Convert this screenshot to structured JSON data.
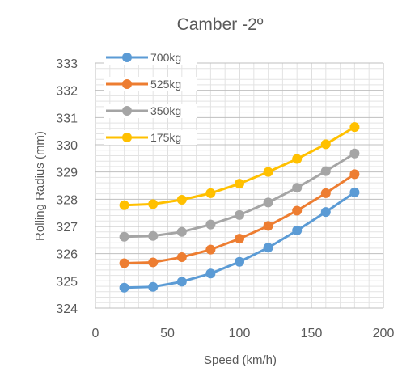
{
  "chart_data": {
    "type": "line",
    "title": "Camber -2º",
    "xlabel": "Speed (km/h)",
    "ylabel": "Rolling Radius (mm)",
    "xlim": [
      0,
      200
    ],
    "ylim": [
      324,
      333
    ],
    "x_ticks": [
      "0",
      "50",
      "100",
      "150",
      "200"
    ],
    "y_ticks": [
      "324",
      "325",
      "326",
      "327",
      "328",
      "329",
      "330",
      "331",
      "332",
      "333"
    ],
    "grid": true,
    "legend_position": "top-left",
    "x": [
      20,
      40,
      60,
      80,
      100,
      120,
      140,
      160,
      180
    ],
    "series": [
      {
        "name": "700kg",
        "color": "#5b9bd5",
        "values": [
          324.75,
          324.78,
          324.97,
          325.27,
          325.7,
          326.22,
          326.85,
          327.53,
          328.25
        ]
      },
      {
        "name": "525kg",
        "color": "#ed7d31",
        "values": [
          325.65,
          325.68,
          325.87,
          326.15,
          326.55,
          327.02,
          327.58,
          328.22,
          328.92
        ]
      },
      {
        "name": "350kg",
        "color": "#a5a5a5",
        "values": [
          326.62,
          326.65,
          326.8,
          327.07,
          327.42,
          327.88,
          328.42,
          329.03,
          329.68
        ]
      },
      {
        "name": "175kg",
        "color": "#ffc000",
        "values": [
          327.78,
          327.82,
          327.98,
          328.22,
          328.57,
          329.0,
          329.48,
          330.02,
          330.65
        ]
      }
    ]
  }
}
